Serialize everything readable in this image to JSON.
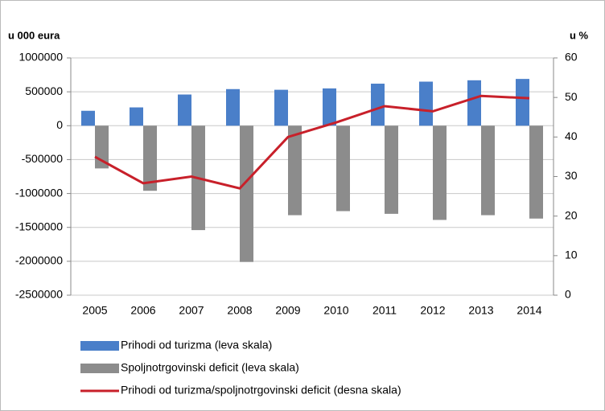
{
  "chart_data": {
    "type": "bar",
    "y_axis_title": "u 000 eura",
    "y2_axis_title": "u %",
    "categories": [
      "2005",
      "2006",
      "2007",
      "2008",
      "2009",
      "2010",
      "2011",
      "2012",
      "2013",
      "2014"
    ],
    "series": [
      {
        "name": "Prihodi od turizma (leva skala)",
        "color": "#4a7fc9",
        "type": "bar",
        "values": [
          220000,
          270000,
          460000,
          540000,
          530000,
          550000,
          620000,
          650000,
          670000,
          690000
        ]
      },
      {
        "name": "Spoljnotrgovinski deficit (leva skala)",
        "color": "#8c8c8c",
        "type": "bar",
        "values": [
          -630000,
          -960000,
          -1540000,
          -2010000,
          -1320000,
          -1260000,
          -1300000,
          -1390000,
          -1320000,
          -1370000
        ]
      },
      {
        "name": "Prihodi od turizma/spoljnotrgovinski deficit (desna skala)",
        "color": "#c8202a",
        "type": "line",
        "axis": "y2",
        "values": [
          35,
          28.3,
          30,
          27,
          40,
          43.7,
          47.8,
          46.5,
          50.4,
          49.8
        ]
      }
    ],
    "ylim": [
      -2500000,
      1000000
    ],
    "yticks": [
      -2500000,
      -2000000,
      -1500000,
      -1000000,
      -500000,
      0,
      500000,
      1000000
    ],
    "y2lim": [
      0,
      60
    ],
    "y2ticks": [
      0,
      10,
      20,
      30,
      40,
      50,
      60
    ],
    "grid": true,
    "legend": "bottom"
  }
}
